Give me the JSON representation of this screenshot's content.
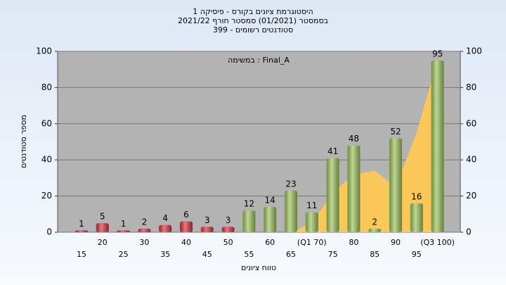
{
  "chart_data": {
    "type": "bar",
    "title_lines": [
      "היסטוגרמת ציונים בקורס - פיסיקה 1",
      "בסמסטר  (01/2021)  סמסטר חורף 2021/22",
      "סטודנטים רשומים - 399"
    ],
    "annotation": "במשימה : Final_A",
    "xlabel": "טווח ציונים",
    "ylabel": "מספר סטודנטים",
    "categories": [
      "15",
      "20",
      "25",
      "30",
      "35",
      "40",
      "45",
      "50",
      "55",
      "60",
      "65",
      "(Q1 70)",
      "75",
      "80",
      "85",
      "90",
      "95",
      "(Q3 100)"
    ],
    "values": [
      1,
      5,
      1,
      2,
      4,
      6,
      3,
      3,
      12,
      14,
      23,
      11,
      41,
      48,
      2,
      52,
      16,
      95
    ],
    "colors": [
      "#d8323c",
      "#d8323c",
      "#d8323c",
      "#d8323c",
      "#d8323c",
      "#d8323c",
      "#d8323c",
      "#d8323c",
      "#9cc25a",
      "#9cc25a",
      "#9cc25a",
      "#9cc25a",
      "#9cc25a",
      "#9cc25a",
      "#9cc25a",
      "#9cc25a",
      "#9cc25a",
      "#9cc25a"
    ],
    "area": {
      "color": "#f9c858",
      "values": [
        0,
        0,
        0,
        0,
        0,
        0,
        0,
        0,
        0,
        0,
        0,
        5,
        22,
        32,
        34,
        25,
        55,
        95
      ]
    },
    "ylim": [
      0,
      100
    ],
    "yticks": [
      0,
      20,
      40,
      60,
      80,
      100
    ],
    "grid": true
  }
}
